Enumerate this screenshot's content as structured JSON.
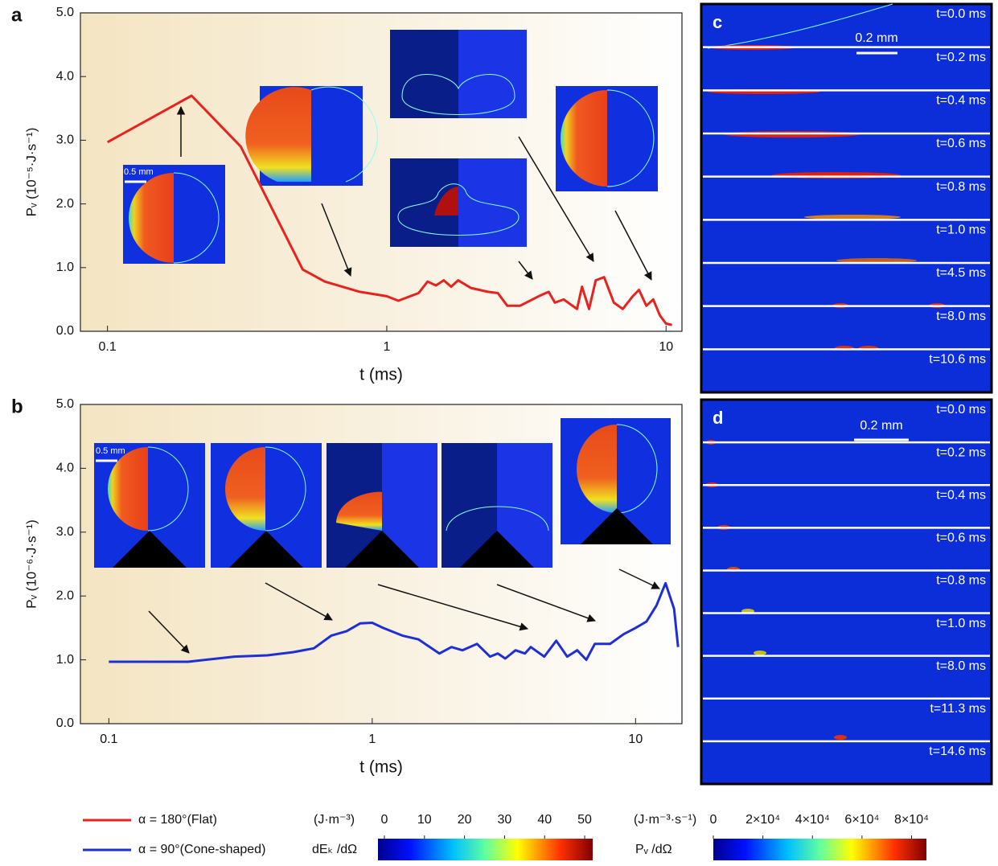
{
  "chart_data": [
    {
      "type": "line",
      "panel_label": "a",
      "x_label": "t (ms)",
      "y_label": "Pᵥ (10⁻⁵·J·s⁻¹)",
      "xscale": "log",
      "xlim": [
        0.08,
        11.4
      ],
      "xticks": [
        0.1,
        1,
        10
      ],
      "ylim": [
        0,
        5
      ],
      "yticks": [
        {
          "value": 0,
          "label": "0.0"
        },
        {
          "value": 1,
          "label": "1.0"
        },
        {
          "value": 2,
          "label": "2.0"
        },
        {
          "value": 3,
          "label": "3.0"
        },
        {
          "value": 4,
          "label": "4.0"
        },
        {
          "value": 5,
          "label": "5.0"
        }
      ],
      "annotations": [
        "0.5 mm"
      ],
      "series": [
        {
          "name": "α = 180°(Flat)",
          "color": "#e8221f",
          "x": [
            0.1,
            0.2,
            0.3,
            0.5,
            0.6,
            0.8,
            1.0,
            1.1,
            1.3,
            1.4,
            1.5,
            1.6,
            1.7,
            1.8,
            2.0,
            2.3,
            2.5,
            2.7,
            3.0,
            3.5,
            3.8,
            4.0,
            4.3,
            4.8,
            5.0,
            5.3,
            5.6,
            6.0,
            6.5,
            7.0,
            7.6,
            8.0,
            8.5,
            9.0,
            9.5,
            10,
            10.5
          ],
          "values": [
            2.97,
            3.7,
            2.9,
            0.97,
            0.78,
            0.62,
            0.55,
            0.48,
            0.6,
            0.78,
            0.72,
            0.8,
            0.7,
            0.8,
            0.68,
            0.62,
            0.6,
            0.4,
            0.4,
            0.55,
            0.62,
            0.45,
            0.5,
            0.35,
            0.7,
            0.35,
            0.8,
            0.85,
            0.45,
            0.35,
            0.55,
            0.65,
            0.4,
            0.5,
            0.25,
            0.12,
            0.1
          ]
        }
      ]
    },
    {
      "type": "line",
      "panel_label": "b",
      "x_label": "t (ms)",
      "y_label": "Pᵥ (10⁻⁶·J·s⁻¹)",
      "xscale": "log",
      "xlim": [
        0.078,
        15
      ],
      "xticks": [
        0.1,
        1,
        10
      ],
      "ylim": [
        0,
        5
      ],
      "yticks": [
        {
          "value": 0,
          "label": "0.0"
        },
        {
          "value": 1,
          "label": "1.0"
        },
        {
          "value": 2,
          "label": "2.0"
        },
        {
          "value": 3,
          "label": "3.0"
        },
        {
          "value": 4,
          "label": "4.0"
        },
        {
          "value": 5,
          "label": "5.0"
        }
      ],
      "annotations": [
        "0.5 mm"
      ],
      "series": [
        {
          "name": "α = 90°(Cone-shaped)",
          "color": "#1f2fd6",
          "x": [
            0.1,
            0.2,
            0.3,
            0.4,
            0.5,
            0.6,
            0.7,
            0.8,
            0.9,
            1.0,
            1.1,
            1.3,
            1.5,
            1.8,
            2.0,
            2.2,
            2.5,
            2.8,
            3.0,
            3.2,
            3.5,
            3.8,
            4.0,
            4.5,
            5,
            5.5,
            6,
            6.5,
            7,
            8,
            9,
            10,
            11,
            12,
            13,
            14,
            14.5
          ],
          "values": [
            0.97,
            0.97,
            1.05,
            1.07,
            1.12,
            1.18,
            1.38,
            1.45,
            1.57,
            1.58,
            1.5,
            1.38,
            1.32,
            1.1,
            1.2,
            1.15,
            1.25,
            1.05,
            1.1,
            1.02,
            1.15,
            1.1,
            1.2,
            1.05,
            1.3,
            1.05,
            1.15,
            1.0,
            1.25,
            1.25,
            1.4,
            1.5,
            1.6,
            1.85,
            2.2,
            1.8,
            1.2
          ]
        }
      ]
    }
  ],
  "panels": [
    {
      "label": "c",
      "scale_bar": "0.2 mm",
      "times": [
        "t=0.0 ms",
        "t=0.2 ms",
        "t=0.4 ms",
        "t=0.6 ms",
        "t=0.8 ms",
        "t=1.0 ms",
        "t=4.5 ms",
        "t=8.0 ms",
        "t=10.6 ms"
      ]
    },
    {
      "label": "d",
      "scale_bar": "0.2 mm",
      "times": [
        "t=0.0 ms",
        "t=0.2 ms",
        "t=0.4 ms",
        "t=0.6 ms",
        "t=0.8 ms",
        "t=1.0 ms",
        "t=8.0 ms",
        "t=11.3 ms",
        "t=14.6 ms"
      ]
    }
  ],
  "colorbars": [
    {
      "unit": "(J·m⁻³)",
      "label": "dEₖ /dΩ",
      "lim": [
        0,
        52
      ],
      "ticks": [
        0,
        10,
        20,
        30,
        40,
        50
      ]
    },
    {
      "unit": "(J·m⁻³·s⁻¹)",
      "label": "Pᵥ /dΩ",
      "lim": [
        0,
        86000
      ],
      "ticks": [
        0,
        {
          "value": 20000,
          "label": "2×10⁴"
        },
        {
          "value": 40000,
          "label": "4×10⁴"
        },
        {
          "value": 60000,
          "label": "6×10⁴"
        },
        {
          "value": 80000,
          "label": "8×10⁴"
        }
      ]
    }
  ]
}
